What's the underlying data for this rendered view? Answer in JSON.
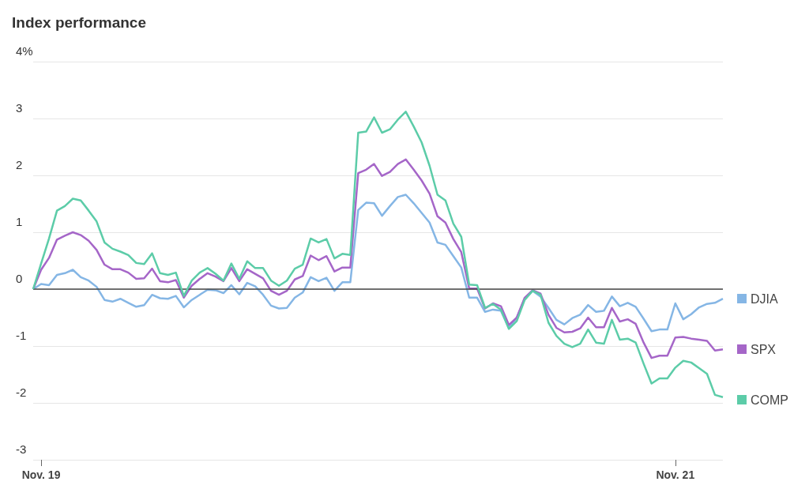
{
  "chart_data": {
    "type": "line",
    "title": "Index performance",
    "categories": [
      null,
      "Nov. 19",
      null,
      null,
      null,
      null,
      null,
      null,
      null,
      null,
      null,
      null,
      null,
      null,
      null,
      null,
      null,
      null,
      null,
      null,
      null,
      null,
      null,
      null,
      null,
      null,
      null,
      null,
      null,
      null,
      null,
      null,
      null,
      null,
      null,
      null,
      null,
      null,
      null,
      null,
      null,
      null,
      null,
      null,
      null,
      null,
      null,
      null,
      null,
      null,
      null,
      null,
      null,
      null,
      null,
      null,
      null,
      null,
      null,
      null,
      null,
      null,
      null,
      null,
      null,
      null,
      null,
      null,
      null,
      null,
      null,
      null,
      null,
      null,
      null,
      null,
      null,
      null,
      null,
      null,
      null,
      "Nov. 21",
      null,
      null,
      null,
      null,
      null,
      null
    ],
    "series": [
      {
        "name": "DJIA",
        "color": "#85b6e5",
        "values": [
          0,
          0.09,
          0.07,
          0.25,
          0.28,
          0.34,
          0.21,
          0.15,
          0.04,
          -0.19,
          -0.22,
          -0.17,
          -0.24,
          -0.31,
          -0.28,
          -0.1,
          -0.16,
          -0.17,
          -0.12,
          -0.32,
          -0.19,
          -0.1,
          -0.01,
          -0.02,
          -0.07,
          0.07,
          -0.09,
          0.11,
          0.05,
          -0.1,
          -0.29,
          -0.34,
          -0.33,
          -0.15,
          -0.06,
          0.21,
          0.14,
          0.2,
          -0.03,
          0.12,
          0.12,
          1.39,
          1.52,
          1.51,
          1.29,
          1.46,
          1.62,
          1.66,
          1.51,
          1.34,
          1.17,
          0.82,
          0.78,
          0.58,
          0.38,
          -0.15,
          -0.15,
          -0.4,
          -0.36,
          -0.38,
          -0.68,
          -0.5,
          -0.17,
          -0.03,
          -0.13,
          -0.33,
          -0.54,
          -0.62,
          -0.51,
          -0.45,
          -0.28,
          -0.4,
          -0.38,
          -0.13,
          -0.3,
          -0.24,
          -0.31,
          -0.52,
          -0.74,
          -0.71,
          -0.71,
          -0.25,
          -0.53,
          -0.44,
          -0.32,
          -0.26,
          -0.24,
          -0.17
        ]
      },
      {
        "name": "SPX",
        "color": "#a566c8",
        "values": [
          0,
          0.34,
          0.55,
          0.87,
          0.94,
          1.0,
          0.95,
          0.85,
          0.69,
          0.43,
          0.35,
          0.35,
          0.29,
          0.18,
          0.19,
          0.36,
          0.14,
          0.12,
          0.16,
          -0.15,
          0.06,
          0.18,
          0.28,
          0.22,
          0.14,
          0.37,
          0.14,
          0.35,
          0.27,
          0.19,
          -0.03,
          -0.1,
          -0.03,
          0.17,
          0.23,
          0.59,
          0.51,
          0.58,
          0.31,
          0.38,
          0.38,
          2.04,
          2.1,
          2.2,
          1.99,
          2.06,
          2.2,
          2.28,
          2.1,
          1.91,
          1.68,
          1.28,
          1.17,
          0.88,
          0.65,
          0.01,
          0.01,
          -0.34,
          -0.25,
          -0.3,
          -0.63,
          -0.5,
          -0.15,
          -0.02,
          -0.08,
          -0.45,
          -0.68,
          -0.76,
          -0.75,
          -0.69,
          -0.5,
          -0.67,
          -0.67,
          -0.33,
          -0.57,
          -0.53,
          -0.61,
          -0.94,
          -1.21,
          -1.17,
          -1.17,
          -0.85,
          -0.84,
          -0.87,
          -0.89,
          -0.91,
          -1.08,
          -1.06
        ]
      },
      {
        "name": "COMP",
        "color": "#5ccca8",
        "values": [
          0,
          0.45,
          0.89,
          1.38,
          1.46,
          1.59,
          1.56,
          1.38,
          1.19,
          0.82,
          0.71,
          0.66,
          0.6,
          0.46,
          0.44,
          0.63,
          0.28,
          0.25,
          0.29,
          -0.12,
          0.15,
          0.29,
          0.37,
          0.27,
          0.15,
          0.45,
          0.18,
          0.49,
          0.37,
          0.37,
          0.15,
          0.06,
          0.15,
          0.36,
          0.43,
          0.89,
          0.82,
          0.88,
          0.54,
          0.62,
          0.6,
          2.75,
          2.77,
          3.02,
          2.75,
          2.81,
          2.98,
          3.12,
          2.86,
          2.58,
          2.17,
          1.66,
          1.56,
          1.15,
          0.92,
          0.08,
          0.07,
          -0.33,
          -0.26,
          -0.36,
          -0.7,
          -0.56,
          -0.19,
          -0.03,
          -0.1,
          -0.59,
          -0.82,
          -0.96,
          -1.02,
          -0.96,
          -0.71,
          -0.94,
          -0.96,
          -0.54,
          -0.89,
          -0.87,
          -0.94,
          -1.31,
          -1.66,
          -1.57,
          -1.57,
          -1.38,
          -1.26,
          -1.29,
          -1.39,
          -1.49,
          -1.86,
          -1.9
        ]
      }
    ],
    "ylim": [
      -3,
      4
    ],
    "yticks": [
      -3,
      -2,
      -1,
      0,
      1,
      2,
      3,
      {
        "value": 4,
        "label": "4%"
      }
    ],
    "ref_lines": [
      {
        "axis": "y",
        "value": 0,
        "color": "#444444"
      }
    ],
    "grid": "y",
    "legend": "right",
    "marker": "none",
    "line_style": "solid"
  }
}
